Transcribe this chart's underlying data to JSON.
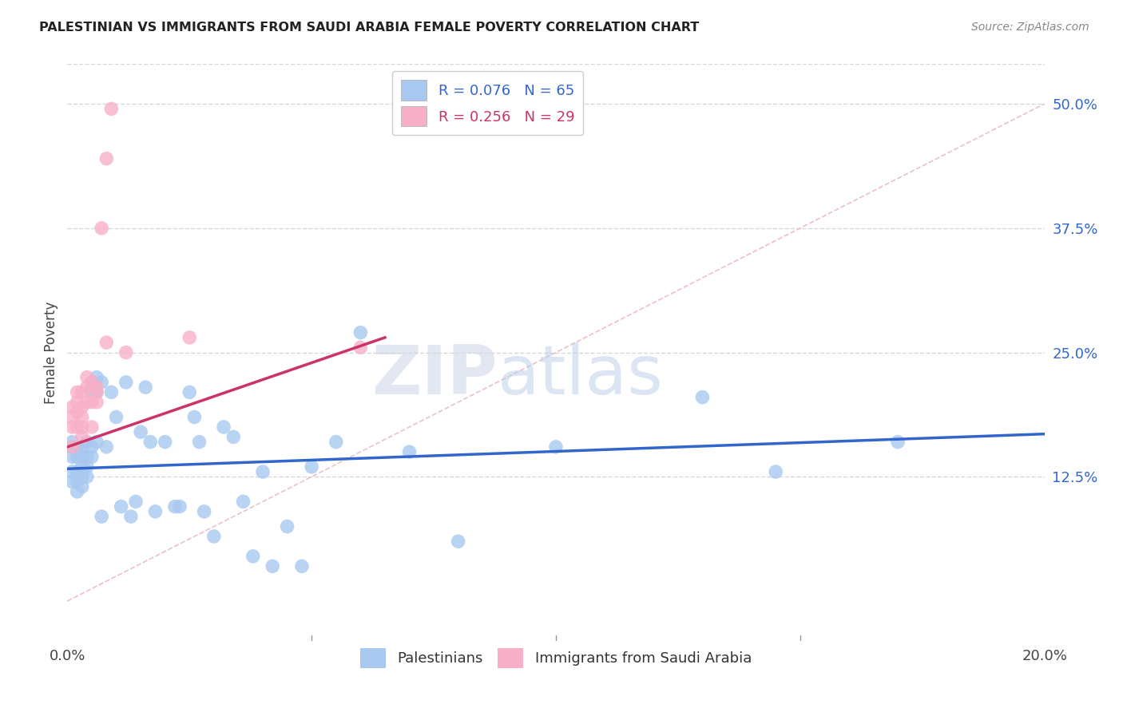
{
  "title": "PALESTINIAN VS IMMIGRANTS FROM SAUDI ARABIA FEMALE POVERTY CORRELATION CHART",
  "source": "Source: ZipAtlas.com",
  "ylabel": "Female Poverty",
  "xlim": [
    0.0,
    0.2
  ],
  "ylim": [
    -0.04,
    0.54
  ],
  "ytick_positions": [
    0.125,
    0.25,
    0.375,
    0.5
  ],
  "ytick_labels": [
    "12.5%",
    "25.0%",
    "37.5%",
    "50.0%"
  ],
  "grid_color": "#d8d8d8",
  "background_color": "#ffffff",
  "watermark_zip": "ZIP",
  "watermark_atlas": "atlas",
  "legend_label1": "Palestinians",
  "legend_label2": "Immigrants from Saudi Arabia",
  "color_blue": "#a8c8f0",
  "color_pink": "#f8b0c8",
  "line_color_blue": "#3366cc",
  "line_color_pink": "#cc3366",
  "diag_color": "#e8b0c0",
  "title_color": "#222222",
  "source_color": "#888888",
  "palestinians_x": [
    0.001,
    0.001,
    0.001,
    0.001,
    0.001,
    0.002,
    0.002,
    0.002,
    0.002,
    0.002,
    0.002,
    0.003,
    0.003,
    0.003,
    0.003,
    0.003,
    0.004,
    0.004,
    0.004,
    0.004,
    0.005,
    0.005,
    0.005,
    0.005,
    0.006,
    0.006,
    0.006,
    0.007,
    0.007,
    0.008,
    0.009,
    0.01,
    0.011,
    0.012,
    0.013,
    0.014,
    0.015,
    0.016,
    0.017,
    0.018,
    0.02,
    0.022,
    0.023,
    0.025,
    0.026,
    0.027,
    0.028,
    0.03,
    0.032,
    0.034,
    0.036,
    0.038,
    0.04,
    0.042,
    0.045,
    0.048,
    0.05,
    0.055,
    0.06,
    0.07,
    0.08,
    0.1,
    0.13,
    0.145,
    0.17
  ],
  "palestinians_y": [
    0.145,
    0.155,
    0.16,
    0.13,
    0.12,
    0.15,
    0.145,
    0.155,
    0.13,
    0.12,
    0.11,
    0.155,
    0.145,
    0.135,
    0.125,
    0.115,
    0.16,
    0.145,
    0.135,
    0.125,
    0.22,
    0.21,
    0.155,
    0.145,
    0.225,
    0.21,
    0.16,
    0.22,
    0.085,
    0.155,
    0.21,
    0.185,
    0.095,
    0.22,
    0.085,
    0.1,
    0.17,
    0.215,
    0.16,
    0.09,
    0.16,
    0.095,
    0.095,
    0.21,
    0.185,
    0.16,
    0.09,
    0.065,
    0.175,
    0.165,
    0.1,
    0.045,
    0.13,
    0.035,
    0.075,
    0.035,
    0.135,
    0.16,
    0.27,
    0.15,
    0.06,
    0.155,
    0.205,
    0.13,
    0.16
  ],
  "saudi_x": [
    0.001,
    0.001,
    0.001,
    0.001,
    0.002,
    0.002,
    0.002,
    0.002,
    0.003,
    0.003,
    0.003,
    0.003,
    0.003,
    0.004,
    0.004,
    0.004,
    0.005,
    0.005,
    0.005,
    0.006,
    0.006,
    0.006,
    0.007,
    0.008,
    0.008,
    0.009,
    0.012,
    0.025,
    0.06
  ],
  "saudi_y": [
    0.155,
    0.175,
    0.185,
    0.195,
    0.175,
    0.19,
    0.2,
    0.21,
    0.165,
    0.175,
    0.185,
    0.195,
    0.21,
    0.2,
    0.215,
    0.225,
    0.175,
    0.2,
    0.22,
    0.2,
    0.21,
    0.215,
    0.375,
    0.26,
    0.445,
    0.495,
    0.25,
    0.265,
    0.255
  ],
  "blue_trend_x0": 0.0,
  "blue_trend_y0": 0.133,
  "blue_trend_x1": 0.2,
  "blue_trend_y1": 0.168,
  "pink_trend_x0": 0.0,
  "pink_trend_y0": 0.155,
  "pink_trend_x1": 0.065,
  "pink_trend_y1": 0.265
}
